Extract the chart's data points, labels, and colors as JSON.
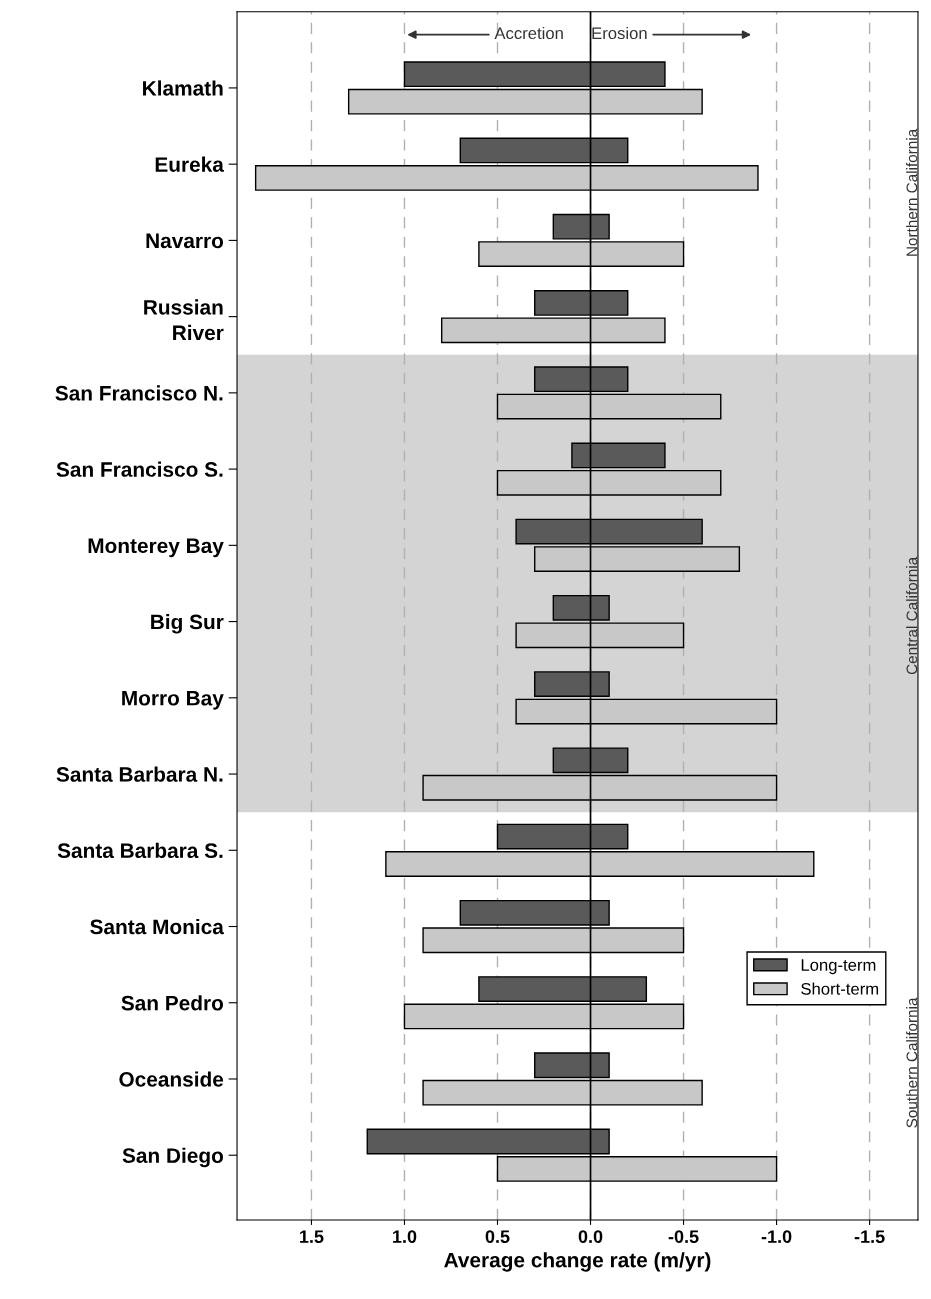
{
  "chart_data": {
    "type": "bar",
    "orientation": "horizontal",
    "xlabel": "Average change rate (m/yr)",
    "categories": [
      "Klamath",
      "Eureka",
      "Navarro",
      "Russian\nRiver",
      "San Francisco N.",
      "San Francisco S.",
      "Monterey Bay",
      "Big Sur",
      "Morro Bay",
      "Santa Barbara N.",
      "Santa Barbara S.",
      "Santa Monica",
      "San Pedro",
      "Oceanside",
      "San Diego"
    ],
    "series": [
      {
        "name": "Long-term",
        "color": "#5a5a5a",
        "base": [
          1.0,
          0.7,
          0.2,
          0.3,
          0.3,
          0.1,
          0.4,
          0.2,
          0.3,
          0.2,
          0.5,
          0.7,
          0.6,
          0.3,
          1.2
        ],
        "values": [
          -1.4,
          -0.9,
          -0.3,
          -0.5,
          -0.5,
          -0.5,
          -1.0,
          -0.3,
          -0.4,
          -0.4,
          -0.7,
          -0.8,
          -0.9,
          -0.4,
          -1.3
        ]
      },
      {
        "name": "Short-term",
        "color": "#c8c8c8",
        "base": [
          1.3,
          1.8,
          0.6,
          0.8,
          0.5,
          0.5,
          0.3,
          0.4,
          0.4,
          0.9,
          1.1,
          0.9,
          1.0,
          0.9,
          0.5
        ],
        "values": [
          -1.9,
          -2.7,
          -1.1,
          -1.2,
          -1.2,
          -1.2,
          -1.1,
          -0.9,
          -1.4,
          -1.9,
          -2.3,
          -1.4,
          -1.5,
          -1.5,
          -1.5
        ]
      }
    ],
    "xlim": [
      1.9,
      -1.76
    ],
    "xticks": [
      {
        "value": 1.5,
        "label": "1.5"
      },
      {
        "value": 1.0,
        "label": "1.0"
      },
      {
        "value": 0.5,
        "label": "0.5"
      },
      {
        "value": 0.0,
        "label": "0.0"
      },
      {
        "value": -0.5,
        "label": "-0.5"
      },
      {
        "value": -1.0,
        "label": "-1.0"
      },
      {
        "value": -1.5,
        "label": "-1.5"
      }
    ],
    "grid": "x",
    "legend": "right",
    "ref_lines": [
      {
        "axis": "x",
        "value": 0,
        "color": "#000000",
        "line_style": "solid"
      }
    ],
    "annotations": [
      "Accretion",
      "Erosion",
      "Northern California",
      "Central California",
      "Southern California"
    ]
  }
}
